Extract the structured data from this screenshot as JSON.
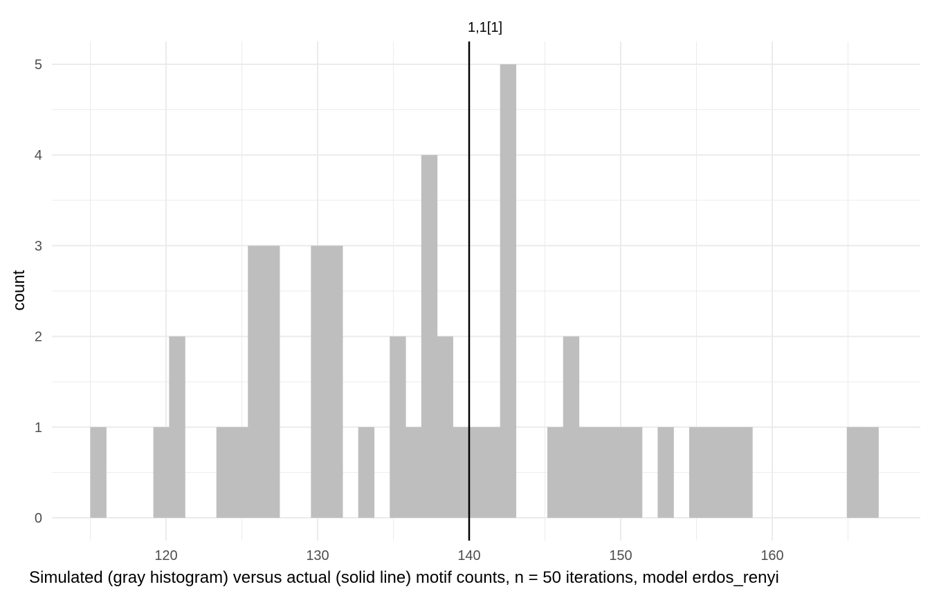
{
  "chart_data": {
    "type": "bar",
    "subtype": "histogram",
    "xlabel": "Simulated (gray histogram) versus actual (solid line) motif counts, n = 50 iterations, model erdos_renyi",
    "ylabel": "count",
    "xlim": [
      112.5,
      169.5
    ],
    "ylim": [
      0,
      5
    ],
    "x_ticks": [
      120,
      130,
      140,
      150,
      160
    ],
    "y_ticks": [
      0,
      1,
      2,
      3,
      4,
      5
    ],
    "grid": true,
    "bin_width": 1.04,
    "bar_color": "#bebebe",
    "bins": [
      {
        "x": 115.52,
        "count": 1
      },
      {
        "x": 119.68,
        "count": 1
      },
      {
        "x": 120.72,
        "count": 2
      },
      {
        "x": 123.84,
        "count": 1
      },
      {
        "x": 124.88,
        "count": 1
      },
      {
        "x": 125.92,
        "count": 3
      },
      {
        "x": 126.96,
        "count": 3
      },
      {
        "x": 130.08,
        "count": 3
      },
      {
        "x": 131.12,
        "count": 3
      },
      {
        "x": 133.2,
        "count": 1
      },
      {
        "x": 135.28,
        "count": 2
      },
      {
        "x": 136.32,
        "count": 1
      },
      {
        "x": 137.36,
        "count": 4
      },
      {
        "x": 138.4,
        "count": 2
      },
      {
        "x": 139.44,
        "count": 1
      },
      {
        "x": 140.48,
        "count": 1
      },
      {
        "x": 141.52,
        "count": 1
      },
      {
        "x": 142.56,
        "count": 5
      },
      {
        "x": 145.68,
        "count": 1
      },
      {
        "x": 146.72,
        "count": 2
      },
      {
        "x": 147.76,
        "count": 1
      },
      {
        "x": 148.8,
        "count": 1
      },
      {
        "x": 149.84,
        "count": 1
      },
      {
        "x": 150.88,
        "count": 1
      },
      {
        "x": 152.96,
        "count": 1
      },
      {
        "x": 155.04,
        "count": 1
      },
      {
        "x": 156.08,
        "count": 1
      },
      {
        "x": 157.12,
        "count": 1
      },
      {
        "x": 158.16,
        "count": 1
      },
      {
        "x": 165.44,
        "count": 1
      },
      {
        "x": 166.48,
        "count": 1
      }
    ],
    "reference_line": {
      "x": 140,
      "label": "1,1[1]",
      "color": "#000000"
    }
  }
}
